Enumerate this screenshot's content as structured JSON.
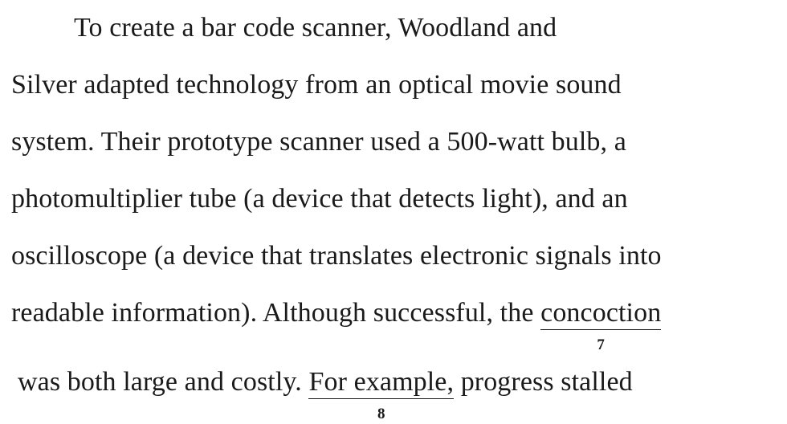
{
  "passage": {
    "line1": "To create a bar code scanner, Woodland and",
    "line2": "Silver adapted technology from an optical movie sound",
    "line3": "system. Their prototype scanner used a 500-watt bulb, a",
    "line4": "photomultiplier tube (a device that detects light), and an",
    "line5": "oscilloscope (a device that translates electronic signals into",
    "line6_before": "readable information). Although successful, the",
    "underline7_text": "concoction",
    "underline7_number": "7",
    "line7_before": "was both large and costly.",
    "underline8_text": "For example,",
    "underline8_number": "8",
    "line7_after": "progress stalled"
  }
}
